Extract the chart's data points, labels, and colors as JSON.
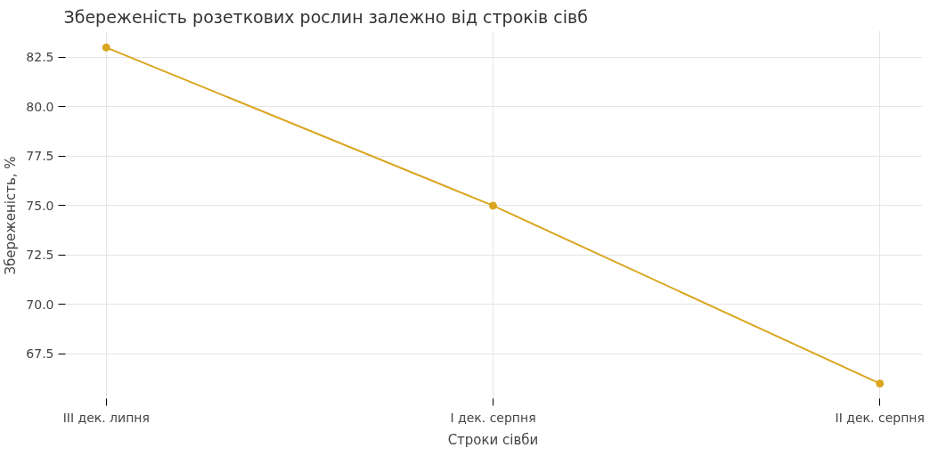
{
  "chart_data": {
    "type": "line",
    "title": "Збереженість розеткових рослин залежно від строків сівб",
    "xlabel": "Строки сівби",
    "ylabel": "Збереженість, %",
    "categories": [
      "III дек. липня",
      "I дек. серпня",
      "II дек. серпня"
    ],
    "series": [
      {
        "color": "#daa520",
        "values": [
          83,
          75,
          66
        ]
      }
    ],
    "ylim": [
      65.15,
      83.85
    ],
    "yticks": [
      67.5,
      {
        "value": 70,
        "label": "70.0"
      },
      72.5,
      {
        "value": 75,
        "label": "75.0"
      },
      77.5,
      {
        "value": 80,
        "label": "80.0"
      },
      82.5
    ],
    "grid": true,
    "marker": "circle",
    "line_style": "solid"
  }
}
